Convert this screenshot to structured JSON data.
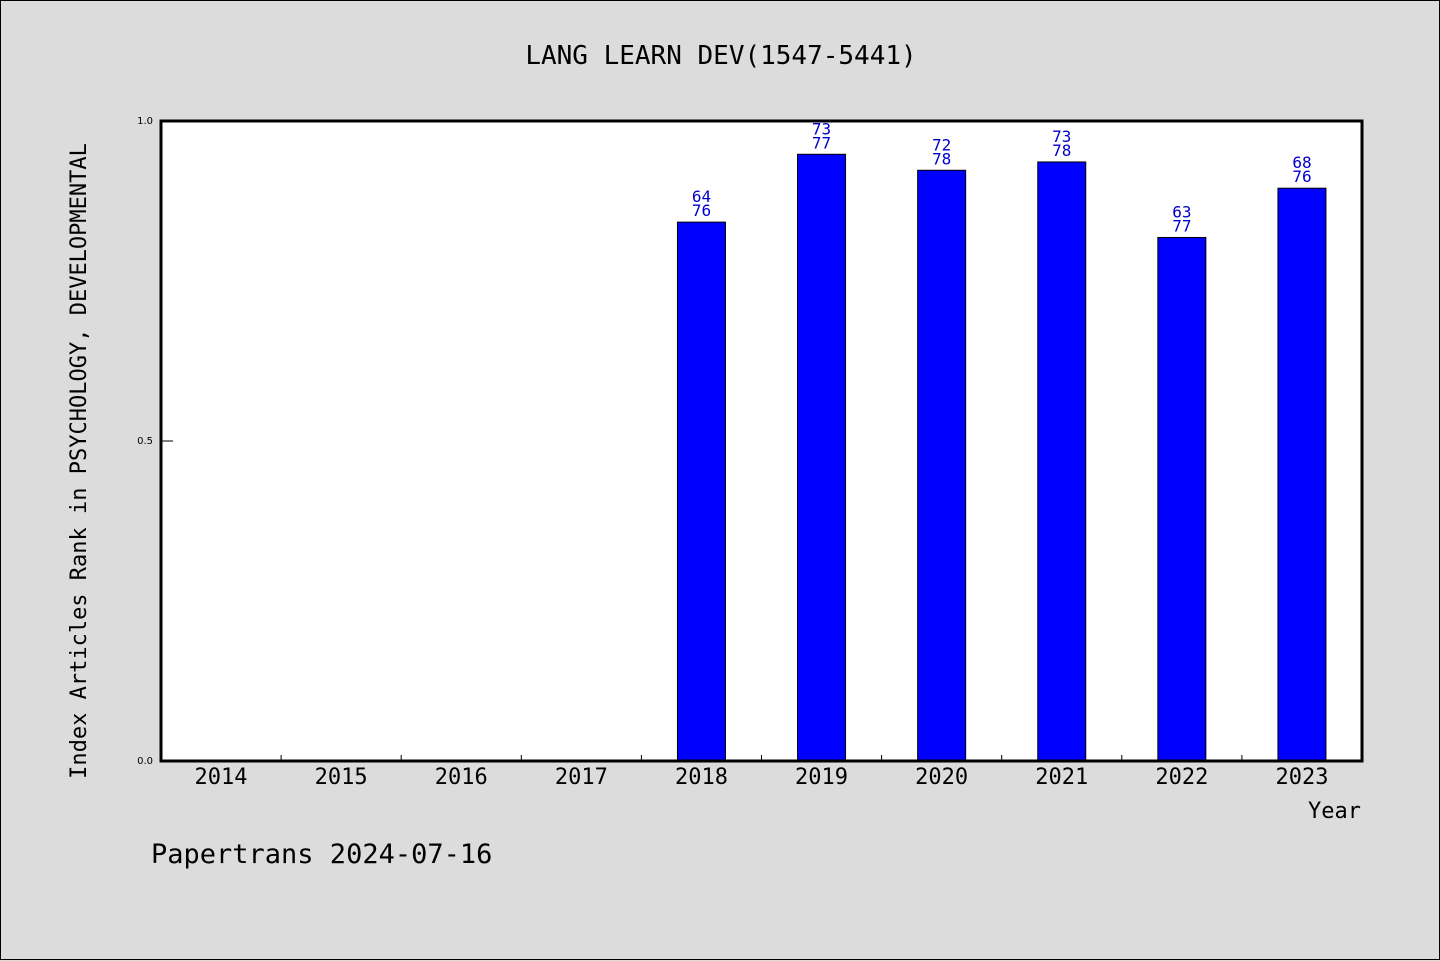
{
  "chart_data": {
    "type": "bar",
    "title": "LANG LEARN DEV(1547-5441)",
    "xlabel": "Year",
    "ylabel": "Index Articles Rank in PSYCHOLOGY, DEVELOPMENTAL",
    "categories": [
      "2014",
      "2015",
      "2016",
      "2017",
      "2018",
      "2019",
      "2020",
      "2021",
      "2022",
      "2023"
    ],
    "values": [
      null,
      null,
      null,
      null,
      0.842,
      0.948,
      0.923,
      0.936,
      0.818,
      0.895
    ],
    "labels_top": [
      "",
      "",
      "",
      "",
      "64",
      "73",
      "72",
      "73",
      "63",
      "68"
    ],
    "labels_bottom": [
      "",
      "",
      "",
      "",
      "76",
      "77",
      "78",
      "78",
      "77",
      "76"
    ],
    "ylim": [
      0.0,
      1.0
    ],
    "yticks": [
      "0.0",
      "0.5",
      "1.0"
    ],
    "bar_color": "#0000ff",
    "label_color": "#0000cc",
    "grid": false
  },
  "footer": "Papertrans 2024-07-16"
}
